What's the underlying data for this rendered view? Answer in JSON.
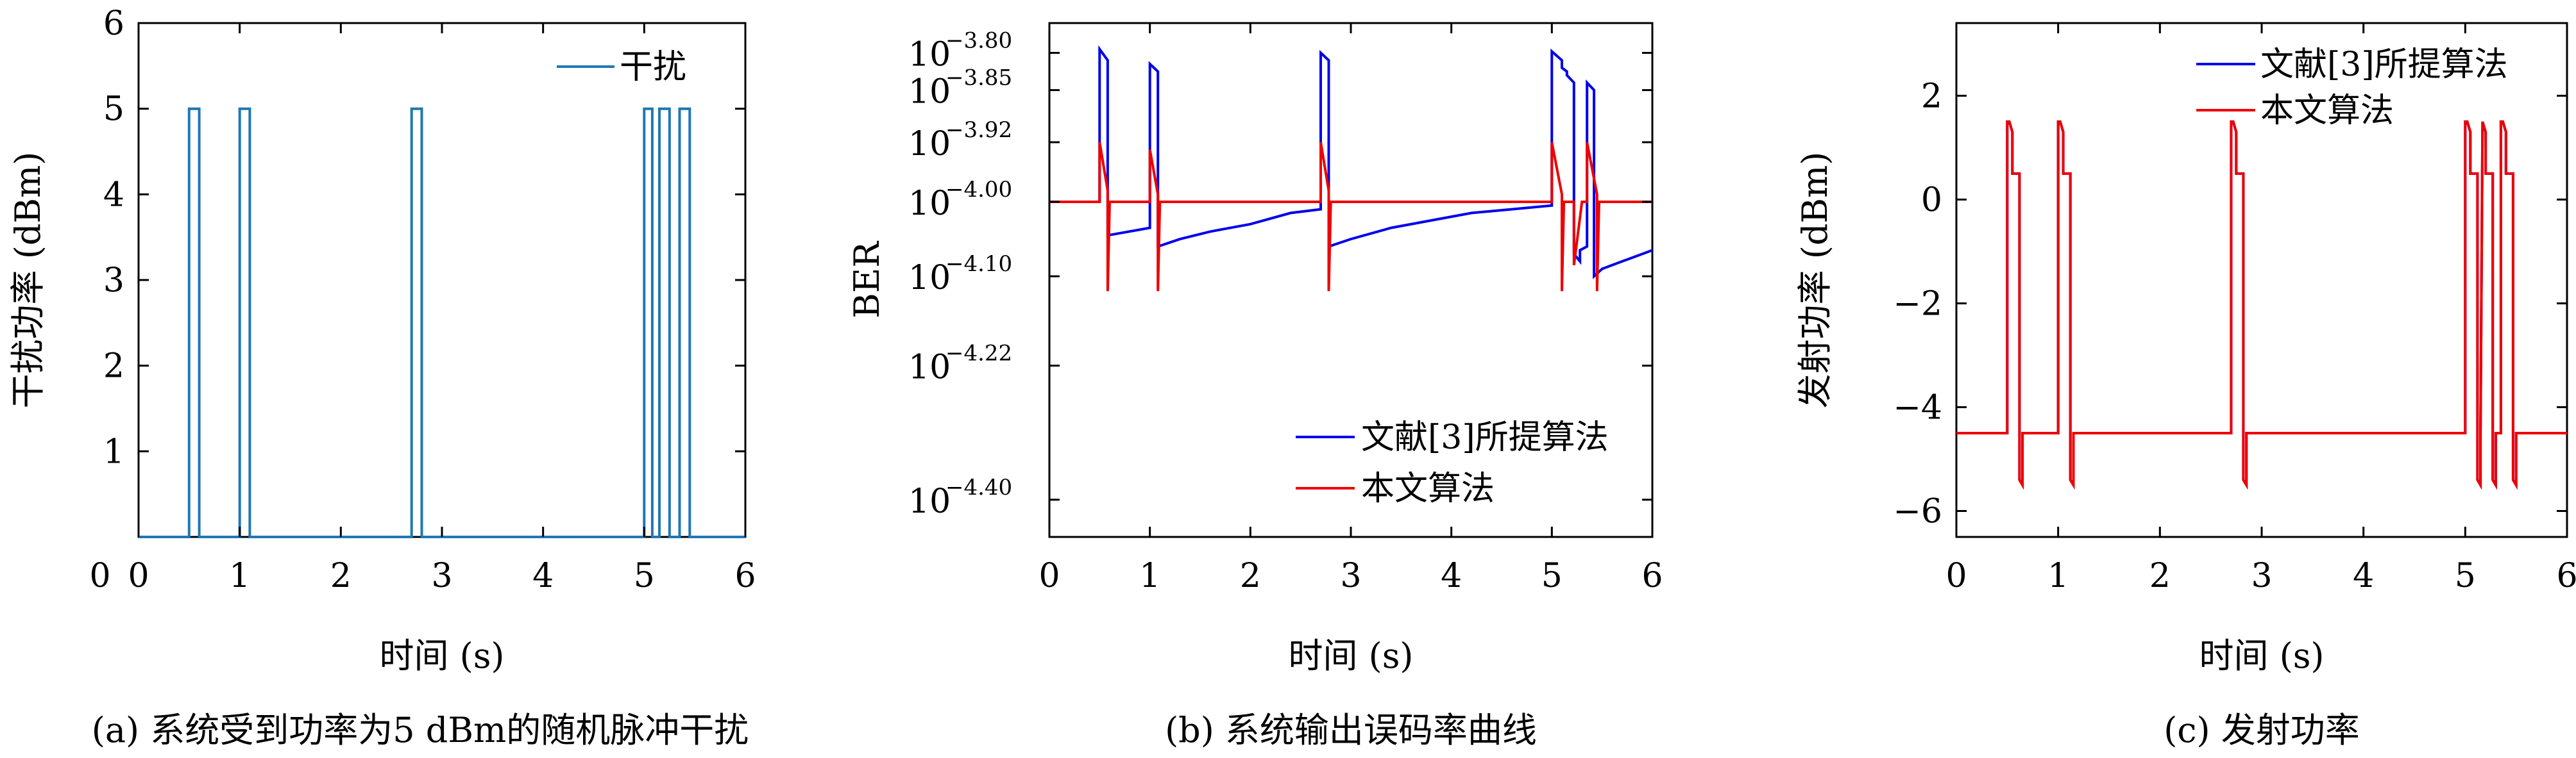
{
  "chart_data": [
    {
      "type": "line",
      "caption": "(a) 系统受到功率为5 dBm的随机脉冲干扰",
      "xlabel": "时间 (s)",
      "ylabel": "干扰功率 (dBm)",
      "xlim": [
        0,
        6
      ],
      "ylim": [
        0,
        6
      ],
      "xticks": [
        "0",
        "1",
        "2",
        "3",
        "4",
        "5",
        "6"
      ],
      "yticks": [
        "1",
        "2",
        "3",
        "4",
        "5",
        "6"
      ],
      "legend_position": "top-right",
      "grid": false,
      "series": [
        {
          "name": "干扰",
          "color": "#1f77b4",
          "x": [
            0,
            0.5,
            0.5,
            0.6,
            0.6,
            1.0,
            1.0,
            1.1,
            1.1,
            2.7,
            2.7,
            2.8,
            2.8,
            5.0,
            5.0,
            5.08,
            5.08,
            5.15,
            5.15,
            5.25,
            5.25,
            5.35,
            5.35,
            5.45,
            5.45,
            6
          ],
          "y": [
            0,
            0,
            5,
            5,
            0,
            0,
            5,
            5,
            0,
            0,
            5,
            5,
            0,
            0,
            5,
            5,
            0,
            0,
            5,
            5,
            0,
            0,
            5,
            5,
            0,
            0
          ]
        }
      ]
    },
    {
      "type": "line",
      "caption": "(b) 系统输出误码率曲线",
      "xlabel": "时间 (s)",
      "ylabel": "BER",
      "xlim": [
        0,
        6
      ],
      "ylim": [
        -4.45,
        -3.76
      ],
      "xticks": [
        "0",
        "1",
        "2",
        "3",
        "4",
        "5",
        "6"
      ],
      "yticks": [
        {
          "base": "10",
          "exp": "−3.80",
          "v": -3.8
        },
        {
          "base": "10",
          "exp": "−3.85",
          "v": -3.85
        },
        {
          "base": "10",
          "exp": "−3.92",
          "v": -3.92
        },
        {
          "base": "10",
          "exp": "−4.00",
          "v": -4.0
        },
        {
          "base": "10",
          "exp": "−4.10",
          "v": -4.1
        },
        {
          "base": "10",
          "exp": "−4.22",
          "v": -4.22
        },
        {
          "base": "10",
          "exp": "−4.40",
          "v": -4.4
        }
      ],
      "legend_position": "bottom-right",
      "grid": false,
      "series": [
        {
          "name": "文献[3]所提算法",
          "color": "#0000ee",
          "x": [
            0,
            0.5,
            0.5,
            0.58,
            0.58,
            1.0,
            1.0,
            1.08,
            1.08,
            1.3,
            1.6,
            2.0,
            2.4,
            2.7,
            2.7,
            2.78,
            2.78,
            3.0,
            3.4,
            3.8,
            4.2,
            4.6,
            5.0,
            5.0,
            5.1,
            5.1,
            5.15,
            5.15,
            5.22,
            5.22,
            5.28,
            5.28,
            5.35,
            5.35,
            5.42,
            5.42,
            5.5,
            5.7,
            6.0
          ],
          "y": [
            -4.0,
            -4.0,
            -3.795,
            -3.81,
            -4.045,
            -4.035,
            -3.815,
            -3.825,
            -4.06,
            -4.05,
            -4.04,
            -4.03,
            -4.015,
            -4.01,
            -3.8,
            -3.81,
            -4.06,
            -4.05,
            -4.035,
            -4.025,
            -4.015,
            -4.01,
            -4.005,
            -3.798,
            -3.81,
            -3.82,
            -3.825,
            -3.83,
            -3.84,
            -4.07,
            -4.08,
            -4.065,
            -4.06,
            -3.84,
            -3.85,
            -4.1,
            -4.09,
            -4.08,
            -4.065
          ]
        },
        {
          "name": "本文算法",
          "color": "#ee0000",
          "x": [
            0,
            0.5,
            0.5,
            0.58,
            0.58,
            0.6,
            1.0,
            1.0,
            1.08,
            1.08,
            1.1,
            2.7,
            2.7,
            2.78,
            2.78,
            2.8,
            5.0,
            5.0,
            5.1,
            5.1,
            5.12,
            5.22,
            5.22,
            5.3,
            5.35,
            5.35,
            5.45,
            5.45,
            5.47,
            6.0
          ],
          "y": [
            -4.0,
            -4.0,
            -3.92,
            -3.985,
            -4.12,
            -4.0,
            -4.0,
            -3.93,
            -3.99,
            -4.12,
            -4.0,
            -4.0,
            -3.92,
            -3.985,
            -4.12,
            -4.0,
            -4.0,
            -3.92,
            -3.99,
            -4.12,
            -4.0,
            -4.0,
            -4.085,
            -4.0,
            -4.0,
            -3.92,
            -3.99,
            -4.12,
            -4.0,
            -4.0
          ]
        }
      ]
    },
    {
      "type": "line",
      "caption": "(c) 发射功率",
      "xlabel": "时间 (s)",
      "ylabel": "发射功率 (dBm)",
      "xlim": [
        0,
        6
      ],
      "ylim": [
        -6.5,
        3.4
      ],
      "xticks": [
        "0",
        "1",
        "2",
        "3",
        "4",
        "5",
        "6"
      ],
      "yticks": [
        {
          "label": "2",
          "v": 2
        },
        {
          "label": "0",
          "v": 0
        },
        {
          "label": "−2",
          "v": -2
        },
        {
          "label": "−4",
          "v": -4
        },
        {
          "label": "−6",
          "v": -6
        }
      ],
      "legend_position": "top-right",
      "grid": false,
      "series": [
        {
          "name": "文献[3]所提算法",
          "color": "#0000ee",
          "x": [
            0,
            0.5,
            0.5,
            0.52,
            0.55,
            0.55,
            0.62,
            0.62,
            0.65,
            0.65,
            1.0,
            1.0,
            1.02,
            1.05,
            1.05,
            1.12,
            1.12,
            1.15,
            1.15,
            2.7,
            2.7,
            2.72,
            2.75,
            2.75,
            2.82,
            2.82,
            2.85,
            2.85,
            5.0,
            5.0,
            5.02,
            5.05,
            5.05,
            5.12,
            5.12,
            5.15,
            5.15,
            5.17,
            5.2,
            5.2,
            5.27,
            5.27,
            5.3,
            5.3,
            5.35,
            5.35,
            5.37,
            5.4,
            5.4,
            5.47,
            5.47,
            5.5,
            5.5,
            6.0
          ],
          "y": [
            -4.5,
            -4.5,
            1.5,
            1.5,
            1.3,
            0.5,
            0.5,
            -5.4,
            -5.5,
            -4.5,
            -4.5,
            1.5,
            1.5,
            1.3,
            0.5,
            0.5,
            -5.4,
            -5.5,
            -4.5,
            -4.5,
            1.5,
            1.5,
            1.3,
            0.5,
            0.5,
            -5.4,
            -5.5,
            -4.5,
            -4.5,
            1.5,
            1.5,
            1.3,
            0.5,
            0.5,
            -5.4,
            -5.5,
            -4.5,
            1.5,
            1.3,
            0.5,
            0.5,
            -5.4,
            -5.5,
            -4.5,
            -4.5,
            1.5,
            1.5,
            1.3,
            0.5,
            0.5,
            -5.4,
            -5.5,
            -4.5,
            -4.5
          ]
        },
        {
          "name": "本文算法",
          "color": "#ee0000",
          "x": [
            0,
            0.5,
            0.5,
            0.52,
            0.55,
            0.55,
            0.62,
            0.62,
            0.65,
            0.65,
            1.0,
            1.0,
            1.02,
            1.05,
            1.05,
            1.12,
            1.12,
            1.15,
            1.15,
            2.7,
            2.7,
            2.72,
            2.75,
            2.75,
            2.82,
            2.82,
            2.85,
            2.85,
            5.0,
            5.0,
            5.02,
            5.05,
            5.05,
            5.12,
            5.12,
            5.15,
            5.15,
            5.17,
            5.2,
            5.2,
            5.27,
            5.27,
            5.3,
            5.3,
            5.35,
            5.35,
            5.37,
            5.4,
            5.4,
            5.47,
            5.47,
            5.5,
            5.5,
            6.0
          ],
          "y": [
            -4.5,
            -4.5,
            1.5,
            1.5,
            1.3,
            0.5,
            0.5,
            -5.4,
            -5.5,
            -4.5,
            -4.5,
            1.5,
            1.5,
            1.3,
            0.5,
            0.5,
            -5.4,
            -5.5,
            -4.5,
            -4.5,
            1.5,
            1.5,
            1.3,
            0.5,
            0.5,
            -5.4,
            -5.5,
            -4.5,
            -4.5,
            1.5,
            1.5,
            1.3,
            0.5,
            0.5,
            -5.4,
            -5.5,
            -4.5,
            1.5,
            1.3,
            0.5,
            0.5,
            -5.4,
            -5.5,
            -4.5,
            -4.5,
            1.5,
            1.5,
            1.3,
            0.5,
            0.5,
            -5.4,
            -5.5,
            -4.5,
            -4.5
          ]
        }
      ]
    }
  ]
}
